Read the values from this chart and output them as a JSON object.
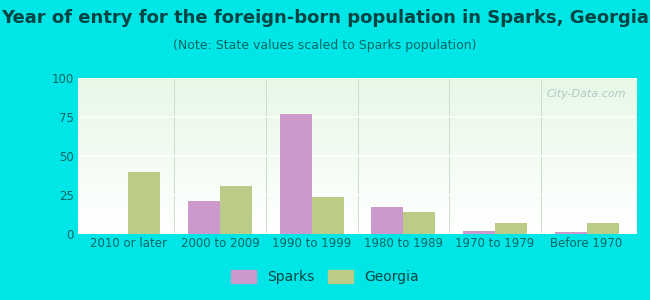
{
  "title": "Year of entry for the foreign-born population in Sparks, Georgia",
  "subtitle": "(Note: State values scaled to Sparks population)",
  "categories": [
    "2010 or later",
    "2000 to 2009",
    "1990 to 1999",
    "1980 to 1989",
    "1970 to 1979",
    "Before 1970"
  ],
  "sparks_values": [
    0,
    21,
    77,
    17,
    2,
    1
  ],
  "georgia_values": [
    40,
    31,
    24,
    14,
    7,
    7
  ],
  "sparks_color": "#cc99cc",
  "georgia_color": "#bbcc88",
  "ylim": [
    0,
    100
  ],
  "yticks": [
    0,
    25,
    50,
    75,
    100
  ],
  "background_outer": "#00e5e5",
  "grid_color": "#ffffff",
  "title_fontsize": 13,
  "subtitle_fontsize": 9,
  "tick_fontsize": 8.5,
  "legend_fontsize": 10,
  "bar_width": 0.35,
  "title_color": "#004444",
  "subtitle_color": "#006666",
  "tick_color": "#006666",
  "watermark": "City-Data.com"
}
